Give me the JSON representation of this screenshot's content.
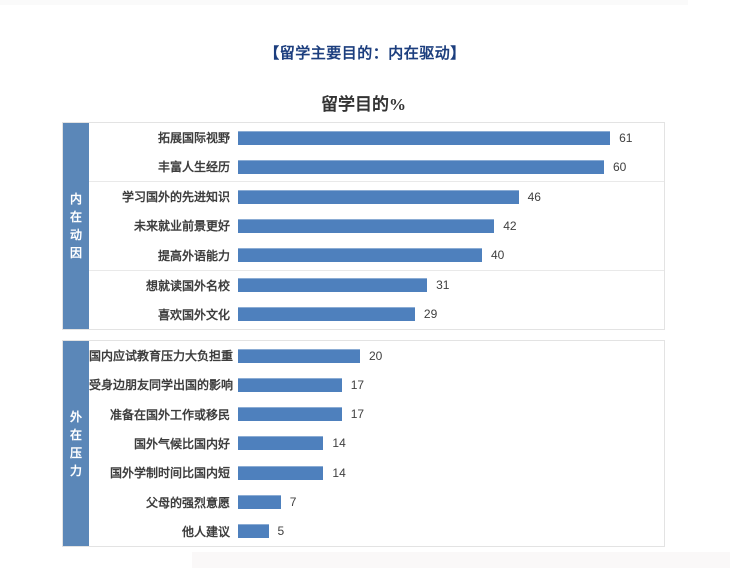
{
  "page": {
    "title": "【留学主要目的：内在驱动】"
  },
  "chart_data": {
    "type": "bar",
    "orientation": "horizontal",
    "title": "留学目的%",
    "value_unit": "%",
    "xlim": [
      0,
      66
    ],
    "grid": false,
    "legend": "none",
    "bar_color": "#4e80bd",
    "sidebar_color": "#5b87b8",
    "sections": [
      {
        "name": "内在动因",
        "categories": [
          "拓展国际视野",
          "丰富人生经历",
          "学习国外的先进知识",
          "未来就业前景更好",
          "提高外语能力",
          "想就读国外名校",
          "喜欢国外文化"
        ],
        "values": [
          61,
          60,
          46,
          42,
          40,
          31,
          29
        ],
        "group_dividers_after": [
          1,
          4
        ]
      },
      {
        "name": "外在压力",
        "categories": [
          "国内应试教育压力大负担重",
          "受身边朋友同学出国的影响",
          "准备在国外工作或移民",
          "国外气候比国内好",
          "国外学制时间比国内短",
          "父母的强烈意愿",
          "他人建议"
        ],
        "values": [
          20,
          17,
          17,
          14,
          14,
          7,
          5
        ],
        "group_dividers_after": []
      }
    ]
  }
}
